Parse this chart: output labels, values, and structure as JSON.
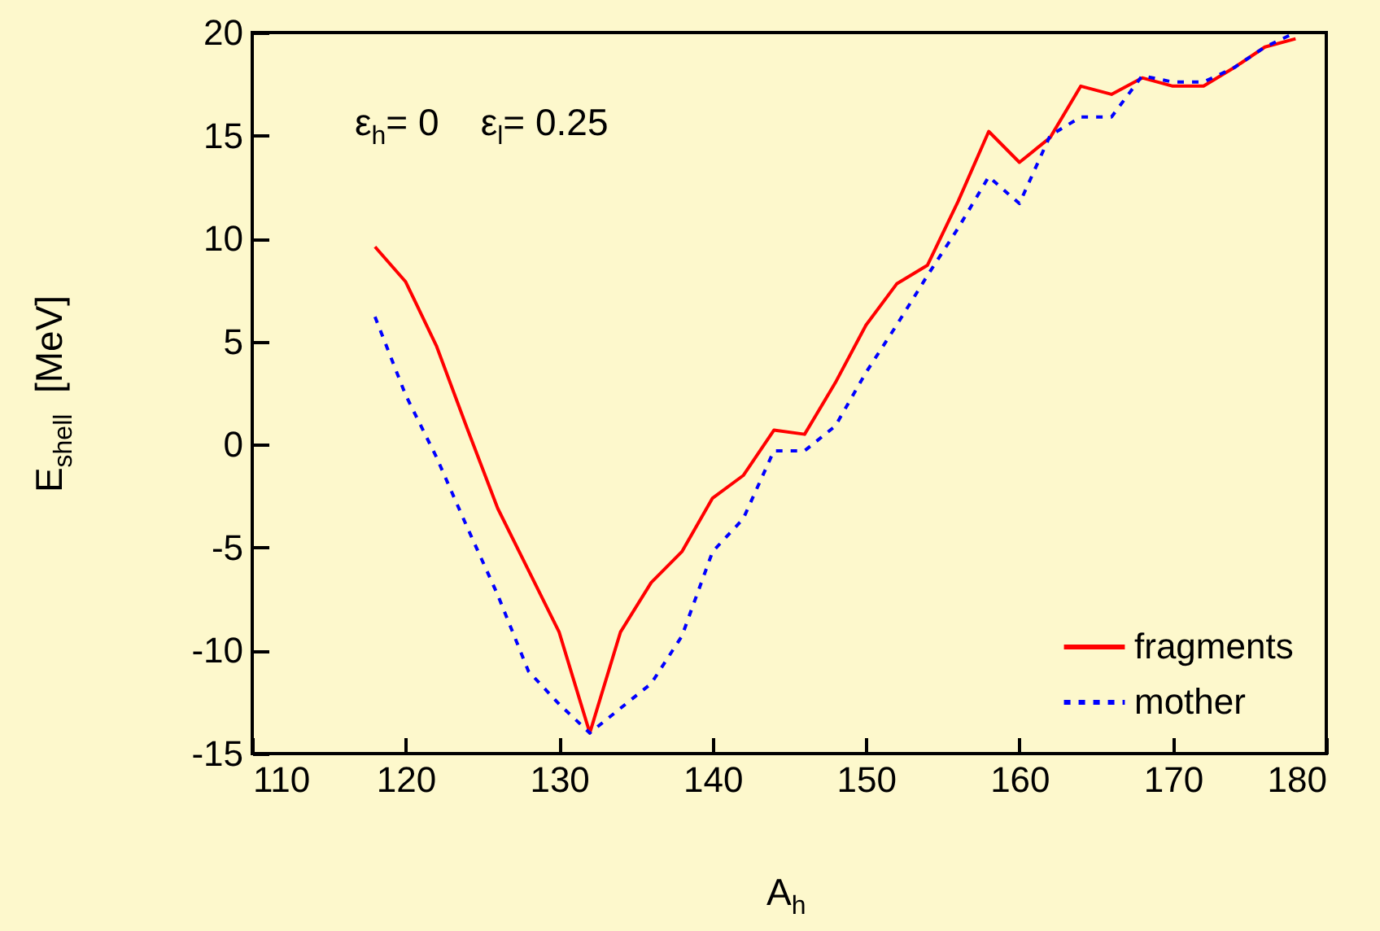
{
  "chart_data": {
    "type": "line",
    "xlabel": "A$_{h}$",
    "ylabel": "E$_{shell}$  [MeV]",
    "annotations": [
      "ε$_{h}$= 0    ε$_{l}$= 0.25"
    ],
    "x": [
      118,
      120,
      122,
      124,
      126,
      128,
      130,
      132,
      134,
      136,
      138,
      140,
      142,
      144,
      146,
      148,
      150,
      152,
      154,
      156,
      158,
      160,
      162,
      164,
      166,
      168,
      170,
      172,
      174,
      176,
      178
    ],
    "series": [
      {
        "name": "fragments",
        "color": "#ff0000",
        "line_style": "solid",
        "values": [
          9.6,
          7.9,
          4.8,
          0.8,
          -3.1,
          -6.1,
          -9.1,
          -14.0,
          -9.1,
          -6.7,
          -5.2,
          -2.6,
          -1.5,
          0.7,
          0.5,
          3.0,
          5.8,
          7.8,
          8.7,
          11.8,
          15.2,
          13.7,
          14.9,
          17.4,
          17.0,
          17.8,
          17.4,
          17.4,
          18.3,
          19.3,
          19.7
        ]
      },
      {
        "name": "mother",
        "color": "#0000ff",
        "line_style": "dotted",
        "values": [
          6.2,
          2.4,
          -0.6,
          -4.0,
          -7.3,
          -11.0,
          -12.6,
          -14.0,
          -12.8,
          -11.6,
          -9.3,
          -5.2,
          -3.6,
          -0.3,
          -0.3,
          0.9,
          3.5,
          5.8,
          8.2,
          10.5,
          13.0,
          11.7,
          15.0,
          15.9,
          15.9,
          17.9,
          17.6,
          17.6,
          18.3,
          19.3,
          20.0
        ]
      }
    ],
    "xlim": [
      110,
      180
    ],
    "xticks": [
      110,
      120,
      130,
      140,
      150,
      160,
      170,
      180
    ],
    "ylim": [
      -15,
      20
    ],
    "yticks": [
      -15,
      -10,
      -5,
      0,
      5,
      10,
      15,
      20
    ],
    "grid": false,
    "legend": "bottom right"
  }
}
